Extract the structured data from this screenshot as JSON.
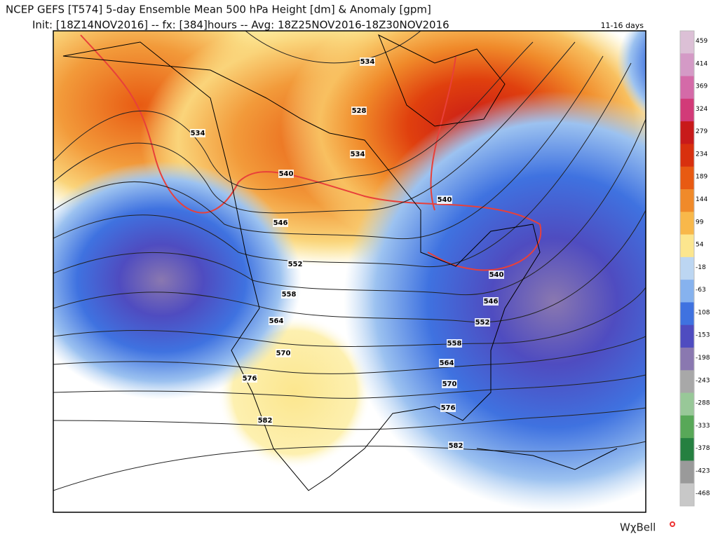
{
  "header": {
    "title": "NCEP GEFS [T574] 5-day Ensemble Mean 500 hPa Height [dm] & Anomaly [gpm]",
    "init": "Init: [18Z14NOV2016] -- fx: [384]hours -- Avg: 18Z25NOV2016-18Z30NOV2016",
    "range": "11-16 days"
  },
  "colorbar": {
    "labels": [
      459,
      414,
      369,
      324,
      279,
      234,
      189,
      144,
      99,
      54,
      -18,
      -63,
      -108,
      -153,
      -198,
      -243,
      -288,
      -333,
      -378,
      -423,
      -468
    ],
    "colors": [
      "#dcc0d6",
      "#d49ac6",
      "#d46aa8",
      "#d23a78",
      "#c81a1a",
      "#d8300e",
      "#e85a12",
      "#f08a2a",
      "#f8b84a",
      "#fce68e",
      "#bcd6f2",
      "#86b2ee",
      "#3f72e0",
      "#4f4cc0",
      "#8a78b0",
      "#a8a8a8",
      "#98c898",
      "#58a858",
      "#258040",
      "#9a9a9a",
      "#c8c8c8"
    ]
  },
  "contour_labels": [
    534,
    528,
    534,
    534,
    540,
    540,
    546,
    552,
    558,
    564,
    570,
    576,
    582,
    540,
    546,
    552,
    558,
    564,
    570,
    576,
    582
  ],
  "brand": "WχBell"
}
